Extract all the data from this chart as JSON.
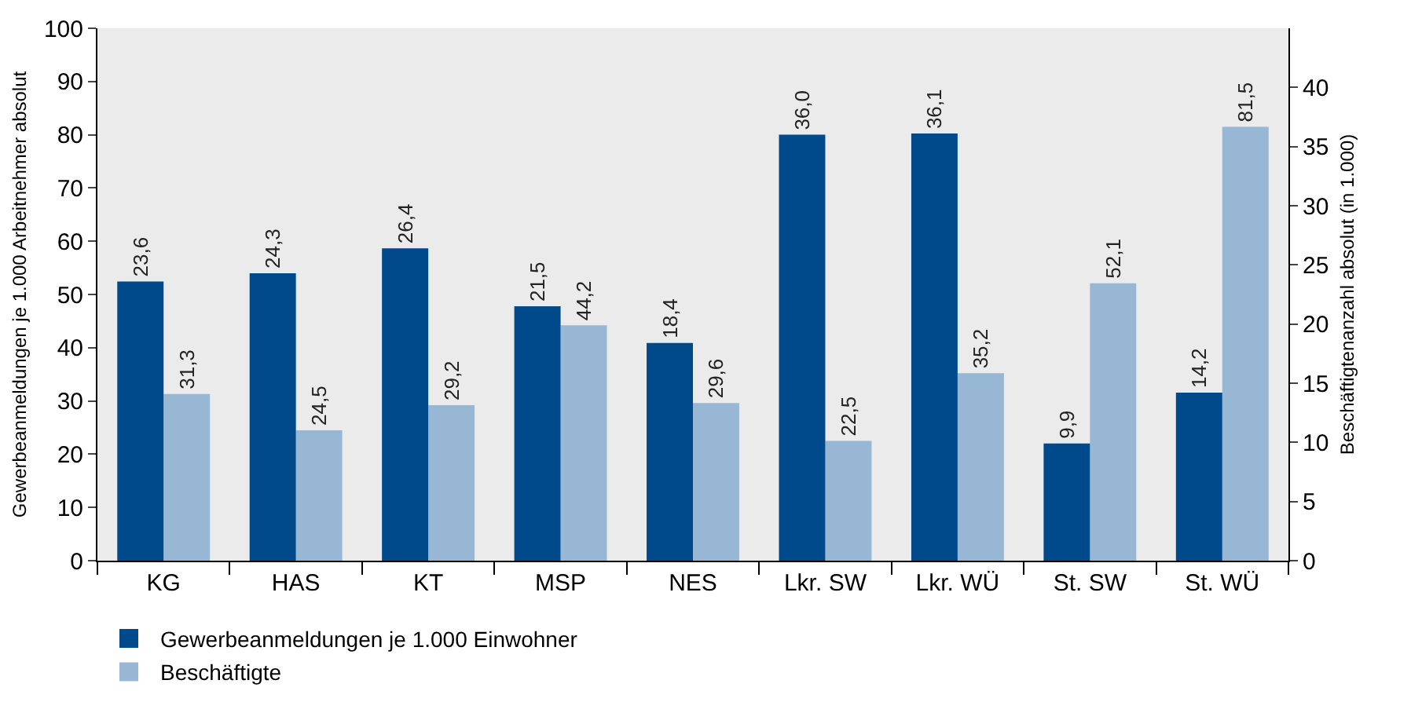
{
  "chart_data": {
    "type": "bar",
    "ylabel": "Gewerbeanmeldungen je 1.000 Arbeitnehmer absolut",
    "y2label": "Beschäftigtenanzahl absolut (in 1.000)",
    "categories": [
      "KG",
      "HAS",
      "KT",
      "MSP",
      "NES",
      "Lkr. SW",
      "Lkr. WÜ",
      "St. SW",
      "St. WÜ"
    ],
    "series": [
      {
        "name": "Gewerbeanmeldungen je 1.000 Einwohner",
        "color": "#004a8c",
        "axis": "y2",
        "values": [
          23.6,
          24.3,
          26.4,
          21.5,
          18.4,
          36.0,
          36.1,
          9.9,
          14.2
        ],
        "value_labels": [
          "23,6",
          "24,3",
          "26,4",
          "21,5",
          "18,4",
          "36,0",
          "36,1",
          "9,9",
          "14,2"
        ]
      },
      {
        "name": "Beschäftigte",
        "color": "#98b7d4",
        "values": [
          31.3,
          24.5,
          29.2,
          44.2,
          29.6,
          22.5,
          35.2,
          52.1,
          81.5
        ],
        "value_labels": [
          "31,3",
          "24,5",
          "29,2",
          "44,2",
          "29,6",
          "22,5",
          "35,2",
          "52,1",
          "81,5"
        ]
      }
    ],
    "ylim": [
      0,
      100
    ],
    "yticks": [
      0,
      10,
      20,
      30,
      40,
      50,
      60,
      70,
      80,
      90,
      100
    ],
    "y2lim": [
      0,
      45
    ],
    "y2ticks": [
      0,
      5,
      10,
      15,
      20,
      25,
      30,
      35,
      40
    ],
    "grid": false,
    "legend": "bottom left"
  }
}
